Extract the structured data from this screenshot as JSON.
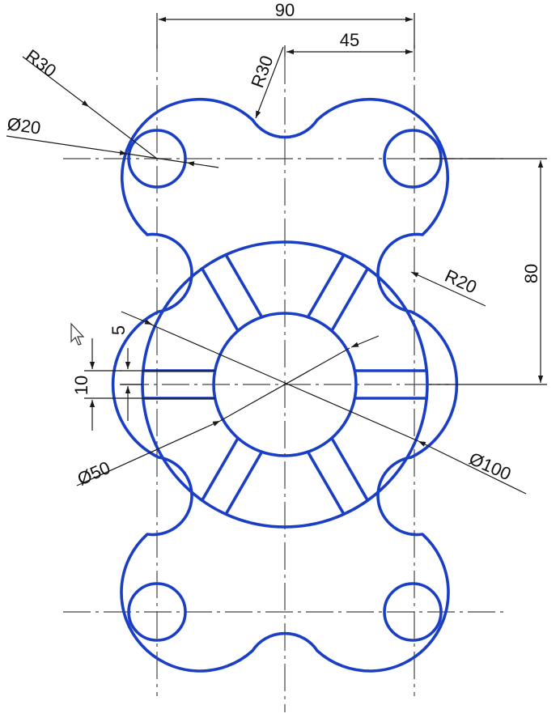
{
  "colors": {
    "outline": "#1a3fc4",
    "center_line": "#444444",
    "dimension": "#1a1a1a",
    "background": "#ffffff"
  },
  "dimensions": {
    "overall_width": "90",
    "half_width": "45",
    "top_radius": "R30",
    "corner_radius": "R30",
    "hole_diameter": "Ø20",
    "neck_radius": "R20",
    "vertical_spacing": "80",
    "spoke_gap": "5",
    "slot_width": "10",
    "inner_diameter": "Ø50",
    "outer_diameter": "Ø100"
  },
  "cursor": {
    "icon": "mouse-pointer-icon"
  }
}
